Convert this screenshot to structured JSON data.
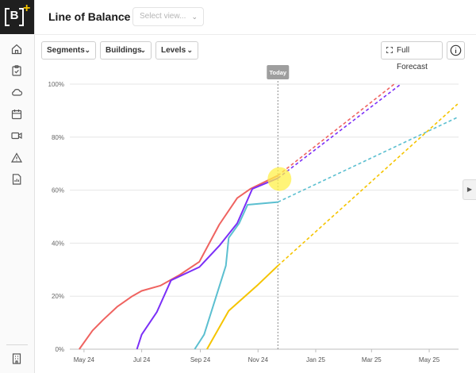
{
  "sidebar": {
    "logo_letter": "B",
    "logo_plus": "+",
    "items": [
      {
        "icon": "home-icon"
      },
      {
        "icon": "clipboard-icon"
      },
      {
        "icon": "cloud-icon"
      },
      {
        "icon": "calendar-icon"
      },
      {
        "icon": "video-icon"
      },
      {
        "icon": "warning-icon"
      },
      {
        "icon": "report-icon"
      }
    ],
    "bottom_icon": "building-icon"
  },
  "header": {
    "title": "Line of Balance",
    "separator": "-",
    "view_placeholder": "Select view..."
  },
  "toolbar": {
    "filters": [
      {
        "label": "Segments"
      },
      {
        "label": "Buildings"
      },
      {
        "label": "Levels"
      }
    ],
    "full_forecast_label": "Full Forecast"
  },
  "colors": {
    "red": "#ef6360",
    "purple": "#7b2ff7",
    "teal": "#5bbfd0",
    "yellow": "#f5c400",
    "today_marker": "#9e9e9e",
    "highlight": "#fff04a"
  },
  "chart_data": {
    "type": "line",
    "today_label": "Today",
    "today_x": "2024-11-22",
    "x_tick_labels": [
      "May 24",
      "Jul 24",
      "Sep 24",
      "Nov 24",
      "Jan 25",
      "Mar 25",
      "May 25"
    ],
    "x_tick_dates": [
      "2024-05-01",
      "2024-07-01",
      "2024-09-01",
      "2024-11-01",
      "2025-01-01",
      "2025-03-01",
      "2025-05-01"
    ],
    "y_tick_labels": [
      "0%",
      "20%",
      "40%",
      "60%",
      "80%",
      "100%"
    ],
    "ylim": [
      0,
      100
    ],
    "grid": true,
    "series": [
      {
        "color": "#ef6360",
        "actual": [
          [
            "2024-04-26",
            0
          ],
          [
            "2024-05-10",
            7
          ],
          [
            "2024-05-21",
            11
          ],
          [
            "2024-06-05",
            16
          ],
          [
            "2024-06-21",
            20
          ],
          [
            "2024-07-01",
            22
          ],
          [
            "2024-07-21",
            24
          ],
          [
            "2024-08-10",
            28
          ],
          [
            "2024-08-31",
            33
          ],
          [
            "2024-09-21",
            47
          ],
          [
            "2024-10-10",
            57
          ],
          [
            "2024-10-24",
            60.5
          ],
          [
            "2024-11-22",
            65.5
          ]
        ],
        "forecast": [
          [
            "2024-11-22",
            65.5
          ],
          [
            "2025-03-25",
            100
          ]
        ]
      },
      {
        "color": "#7b2ff7",
        "actual": [
          [
            "2024-06-26",
            0
          ],
          [
            "2024-07-01",
            5.5
          ],
          [
            "2024-07-17",
            14
          ],
          [
            "2024-08-01",
            26
          ],
          [
            "2024-08-31",
            31
          ],
          [
            "2024-09-21",
            39
          ],
          [
            "2024-10-10",
            47.5
          ],
          [
            "2024-10-26",
            60.5
          ],
          [
            "2024-11-22",
            64.5
          ]
        ],
        "forecast": [
          [
            "2024-11-22",
            64.5
          ],
          [
            "2025-04-01",
            100
          ]
        ]
      },
      {
        "color": "#5bbfd0",
        "actual": [
          [
            "2024-08-26",
            0
          ],
          [
            "2024-09-05",
            5.5
          ],
          [
            "2024-09-28",
            31.5
          ],
          [
            "2024-10-01",
            42
          ],
          [
            "2024-10-12",
            47.5
          ],
          [
            "2024-10-21",
            54.5
          ],
          [
            "2024-11-22",
            55.5
          ]
        ],
        "forecast": [
          [
            "2024-11-22",
            55.5
          ],
          [
            "2025-05-31",
            87.5
          ]
        ]
      },
      {
        "color": "#f5c400",
        "actual": [
          [
            "2024-09-08",
            0
          ],
          [
            "2024-10-01",
            14.5
          ],
          [
            "2024-10-31",
            24
          ],
          [
            "2024-11-22",
            31.5
          ]
        ],
        "forecast": [
          [
            "2024-11-22",
            31.5
          ],
          [
            "2025-05-31",
            92.5
          ]
        ]
      }
    ]
  }
}
